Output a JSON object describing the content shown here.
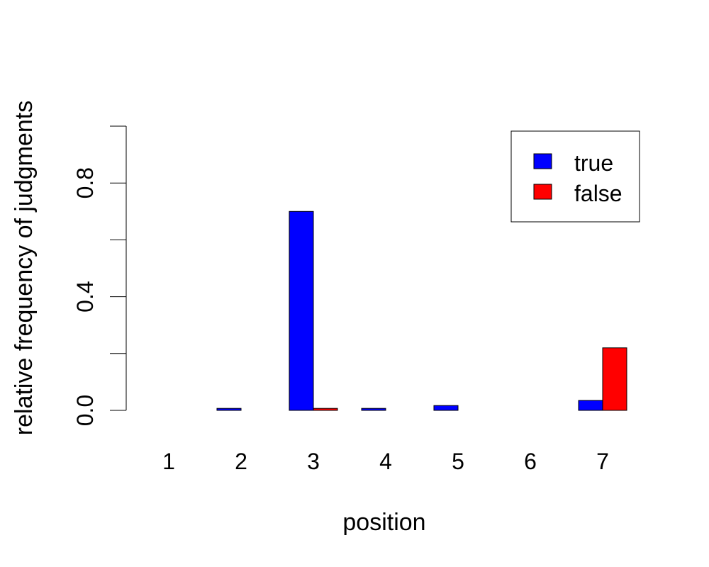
{
  "chart_data": {
    "type": "bar",
    "title": "",
    "xlabel": "position",
    "ylabel": "relative frequency of judgments",
    "categories": [
      "1",
      "2",
      "3",
      "4",
      "5",
      "6",
      "7"
    ],
    "series": [
      {
        "name": "true",
        "color": "#0000ff",
        "values": [
          0.0,
          0.007,
          0.7,
          0.007,
          0.017,
          0.0,
          0.035
        ]
      },
      {
        "name": "false",
        "color": "#ff0000",
        "values": [
          0.0,
          0.0,
          0.007,
          0.0,
          0.0,
          0.0,
          0.22
        ]
      }
    ],
    "ylim": [
      0,
      1
    ],
    "yticks": [
      0.0,
      0.2,
      0.4,
      0.6,
      0.8,
      1.0
    ],
    "ytick_labels": [
      "0.0",
      "",
      "0.4",
      "",
      "0.8",
      ""
    ],
    "legend_position": "top-right",
    "grid": false
  }
}
